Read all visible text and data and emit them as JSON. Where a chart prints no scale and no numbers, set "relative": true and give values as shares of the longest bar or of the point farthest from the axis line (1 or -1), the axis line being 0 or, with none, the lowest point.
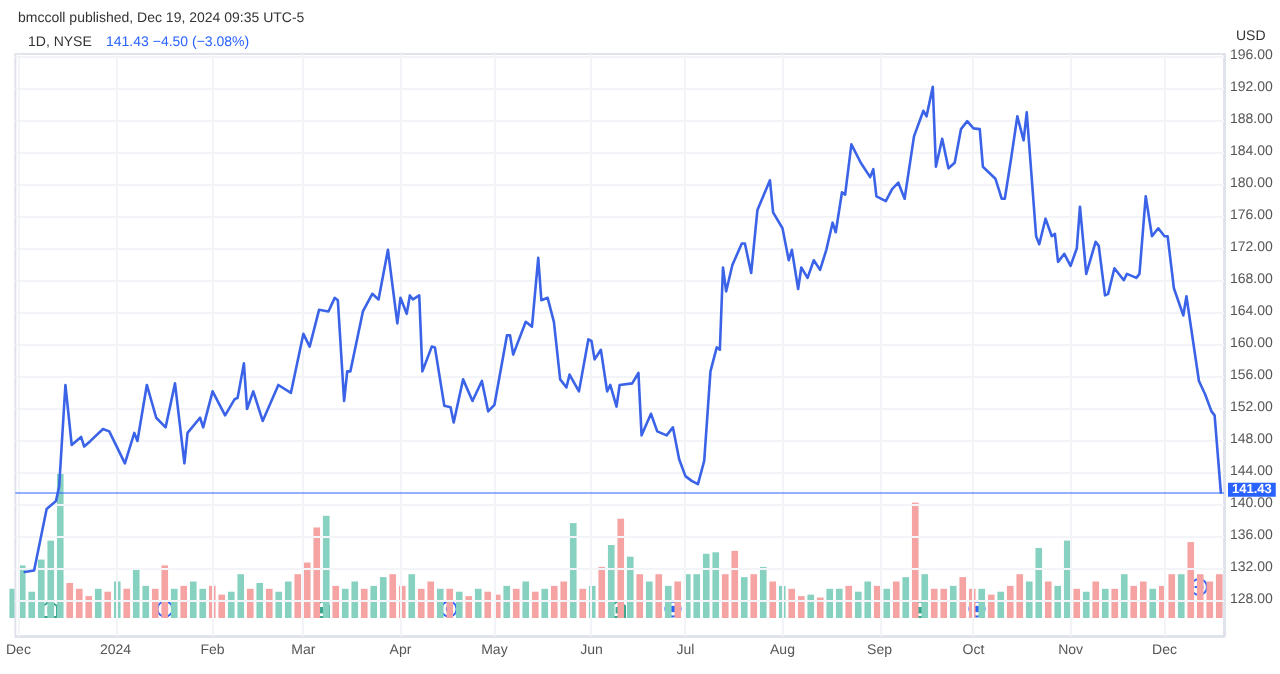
{
  "chart_data": [
    {
      "type": "line",
      "title": "1D, NYSE",
      "subtitle": "141.43 −4.50 (−3.08%)",
      "ylabel": "USD",
      "annotations": [
        "bmccoll published, Dec 19, 2024 09:35 UTC-5"
      ],
      "x": [
        "2023-12-03",
        "2023-12-06",
        "2023-12-10",
        "2023-12-13",
        "2023-12-14",
        "2023-12-16",
        "2023-12-18",
        "2023-12-21",
        "2023-12-22",
        "2023-12-24",
        "2023-12-28",
        "2023-12-30",
        "2024-01-04",
        "2024-01-07",
        "2024-01-08",
        "2024-01-11",
        "2024-01-14",
        "2024-01-17",
        "2024-01-20",
        "2024-01-23",
        "2024-01-24",
        "2024-01-28",
        "2024-01-29",
        "2024-02-01",
        "2024-02-05",
        "2024-02-08",
        "2024-02-09",
        "2024-02-11",
        "2024-02-12",
        "2024-02-14",
        "2024-02-17",
        "2024-02-22",
        "2024-02-26",
        "2024-03-01",
        "2024-03-03",
        "2024-03-06",
        "2024-03-09",
        "2024-03-11",
        "2024-03-12",
        "2024-03-14",
        "2024-03-15",
        "2024-03-16",
        "2024-03-20",
        "2024-03-23",
        "2024-03-25",
        "2024-03-28",
        "2024-03-31",
        "2024-04-01",
        "2024-04-03",
        "2024-04-04",
        "2024-04-05",
        "2024-04-07",
        "2024-04-08",
        "2024-04-11",
        "2024-04-12",
        "2024-04-15",
        "2024-04-17",
        "2024-04-18",
        "2024-04-21",
        "2024-04-24",
        "2024-04-27",
        "2024-04-29",
        "2024-05-01",
        "2024-05-05",
        "2024-05-06",
        "2024-05-07",
        "2024-05-11",
        "2024-05-13",
        "2024-05-15",
        "2024-05-16",
        "2024-05-18",
        "2024-05-20",
        "2024-05-22",
        "2024-05-24",
        "2024-05-25",
        "2024-05-28",
        "2024-05-31",
        "2024-06-01",
        "2024-06-02",
        "2024-06-04",
        "2024-06-06",
        "2024-06-07",
        "2024-06-09",
        "2024-06-10",
        "2024-06-14",
        "2024-06-16",
        "2024-06-17",
        "2024-06-20",
        "2024-06-22",
        "2024-06-25",
        "2024-06-27",
        "2024-06-29",
        "2024-07-01",
        "2024-07-03",
        "2024-07-05",
        "2024-07-07",
        "2024-07-09",
        "2024-07-11",
        "2024-07-12",
        "2024-07-13",
        "2024-07-14",
        "2024-07-16",
        "2024-07-19",
        "2024-07-20",
        "2024-07-22",
        "2024-07-24",
        "2024-07-28",
        "2024-07-29",
        "2024-08-01",
        "2024-08-03",
        "2024-08-04",
        "2024-08-06",
        "2024-08-07",
        "2024-08-09",
        "2024-08-11",
        "2024-08-13",
        "2024-08-15",
        "2024-08-17",
        "2024-08-18",
        "2024-08-20",
        "2024-08-21",
        "2024-08-23",
        "2024-08-26",
        "2024-08-29",
        "2024-08-30",
        "2024-08-31",
        "2024-09-03",
        "2024-09-05",
        "2024-09-07",
        "2024-09-09",
        "2024-09-12",
        "2024-09-15",
        "2024-09-16",
        "2024-09-18",
        "2024-09-19",
        "2024-09-21",
        "2024-09-23",
        "2024-09-25",
        "2024-09-27",
        "2024-09-29",
        "2024-10-01",
        "2024-10-03",
        "2024-10-04",
        "2024-10-08",
        "2024-10-10",
        "2024-10-11",
        "2024-10-13",
        "2024-10-15",
        "2024-10-17",
        "2024-10-18",
        "2024-10-21",
        "2024-10-22",
        "2024-10-24",
        "2024-10-26",
        "2024-10-27",
        "2024-10-28",
        "2024-10-30",
        "2024-11-01",
        "2024-11-03",
        "2024-11-04",
        "2024-11-06",
        "2024-11-09",
        "2024-11-10",
        "2024-11-12",
        "2024-11-13",
        "2024-11-15",
        "2024-11-18",
        "2024-11-19",
        "2024-11-22",
        "2024-11-23",
        "2024-11-25",
        "2024-11-27",
        "2024-11-29",
        "2024-12-01",
        "2024-12-02",
        "2024-12-04",
        "2024-12-07",
        "2024-12-08",
        "2024-12-12",
        "2024-12-14",
        "2024-12-16",
        "2024-12-17",
        "2024-12-19"
      ],
      "values": [
        131.5,
        131.7,
        139.4,
        140.4,
        142.2,
        154.9,
        147.4,
        148.4,
        147.2,
        147.9,
        149.4,
        149.1,
        145.1,
        148.9,
        147.9,
        154.9,
        150.8,
        149.6,
        155.1,
        145.1,
        148.9,
        150.8,
        149.6,
        154.1,
        151.1,
        153.1,
        153.3,
        157.6,
        151.9,
        154.1,
        150.4,
        154.9,
        153.9,
        161.3,
        159.7,
        164.3,
        164.1,
        165.8,
        165.5,
        152.9,
        156.6,
        156.6,
        164.1,
        166.3,
        165.6,
        171.8,
        162.6,
        165.8,
        163.8,
        166.1,
        165.6,
        166.1,
        156.6,
        159.7,
        159.6,
        152.3,
        152.1,
        150.2,
        155.6,
        152.9,
        155.4,
        151.6,
        152.4,
        161.1,
        161.1,
        158.7,
        162.8,
        162.2,
        170.8,
        165.5,
        165.8,
        162.8,
        155.6,
        154.6,
        156.2,
        154.1,
        160.6,
        160.4,
        158.1,
        159.3,
        154.1,
        154.9,
        152.2,
        154.9,
        155.1,
        156.4,
        148.6,
        151.3,
        149.1,
        148.6,
        149.6,
        145.6,
        143.5,
        142.9,
        142.5,
        145.4,
        156.6,
        159.6,
        159.3,
        169.6,
        166.6,
        169.9,
        172.6,
        172.6,
        168.9,
        176.8,
        180.5,
        176.5,
        174.5,
        170.5,
        171.8,
        166.9,
        169.6,
        168.3,
        170.5,
        169.3,
        171.8,
        175.2,
        174.0,
        179.0,
        178.7,
        185.0,
        182.7,
        180.9,
        181.9,
        178.5,
        177.9,
        179.4,
        180.2,
        178.2,
        186.0,
        189.2,
        188.5,
        192.2,
        182.2,
        185.7,
        182.0,
        182.7,
        186.9,
        187.9,
        187.0,
        186.9,
        182.2,
        180.7,
        178.2,
        178.2,
        183.2,
        188.5,
        185.5,
        189.0,
        173.5,
        172.5,
        175.7,
        173.5,
        173.8,
        170.3,
        171.3,
        169.8,
        172.0,
        177.2,
        168.8,
        172.8,
        172.3,
        166.1,
        166.3,
        169.5,
        168.0,
        168.8,
        168.3,
        168.8,
        178.5,
        173.5,
        174.5,
        173.5,
        173.5,
        167.0,
        163.6,
        166.0,
        155.4,
        153.7,
        151.6,
        151.1,
        141.43
      ],
      "color": "#3a63e8",
      "xlim": [
        "2023-11-30",
        "2024-12-20"
      ],
      "xticks": [
        {
          "value": "2023-12-01",
          "label": "Dec"
        },
        {
          "value": "2024-01-01",
          "label": "2024"
        },
        {
          "value": "2024-02-01",
          "label": "Feb"
        },
        {
          "value": "2024-03-01",
          "label": "Mar"
        },
        {
          "value": "2024-04-01",
          "label": "Apr"
        },
        {
          "value": "2024-05-01",
          "label": "May"
        },
        {
          "value": "2024-06-01",
          "label": "Jun"
        },
        {
          "value": "2024-07-01",
          "label": "Jul"
        },
        {
          "value": "2024-08-01",
          "label": "Aug"
        },
        {
          "value": "2024-09-01",
          "label": "Sep"
        },
        {
          "value": "2024-10-01",
          "label": "Oct"
        },
        {
          "value": "2024-11-01",
          "label": "Nov"
        },
        {
          "value": "2024-12-01",
          "label": "Dec"
        }
      ],
      "ylim": [
        123.5,
        196.3
      ],
      "yticks": [
        {
          "value": 128,
          "label": "128.00"
        },
        {
          "value": 132,
          "label": "132.00"
        },
        {
          "value": 136,
          "label": "136.00"
        },
        {
          "value": 140,
          "label": "140.00"
        },
        {
          "value": 144,
          "label": "144.00"
        },
        {
          "value": 148,
          "label": "148.00"
        },
        {
          "value": 152,
          "label": "152.00"
        },
        {
          "value": 156,
          "label": "156.00"
        },
        {
          "value": 160,
          "label": "160.00"
        },
        {
          "value": 164,
          "label": "164.00"
        },
        {
          "value": 168,
          "label": "168.00"
        },
        {
          "value": 172,
          "label": "172.00"
        },
        {
          "value": 176,
          "label": "176.00"
        },
        {
          "value": 180,
          "label": "180.00"
        },
        {
          "value": 184,
          "label": "184.00"
        },
        {
          "value": 188,
          "label": "188.00"
        },
        {
          "value": 192,
          "label": "192.00"
        },
        {
          "value": 196,
          "label": "196.00"
        }
      ],
      "ref_lines": [
        {
          "axis": "y",
          "value": 141.43,
          "label": "141.43",
          "color": "#2962ff"
        }
      ],
      "grid": true
    },
    {
      "type": "bar",
      "relative": true,
      "categories": [
        null,
        null,
        null,
        null,
        null,
        null,
        null,
        null,
        null,
        null,
        null,
        null,
        null,
        null,
        null,
        null,
        null,
        null,
        null,
        null,
        null,
        null,
        null,
        null,
        null,
        null,
        null,
        null,
        null,
        null,
        null,
        null,
        null,
        null,
        null,
        null,
        null,
        null,
        null,
        null,
        null,
        null,
        null,
        null,
        null,
        null,
        null,
        null,
        null,
        null,
        null,
        null,
        null,
        null,
        null,
        null,
        null,
        null,
        null,
        null,
        null,
        null,
        null,
        null,
        null,
        null,
        null,
        null,
        null,
        null,
        null,
        null,
        null,
        null,
        null,
        null,
        null,
        null,
        null,
        null,
        null,
        null,
        null,
        null,
        null,
        null,
        null,
        null,
        null,
        null,
        null,
        null,
        null,
        null,
        null,
        null,
        null,
        null,
        null,
        null,
        null,
        null,
        null,
        null,
        null,
        null,
        null,
        null,
        null,
        null,
        null,
        null,
        null,
        null,
        null,
        null,
        null,
        null,
        null,
        null,
        null,
        null,
        null,
        null,
        null,
        null,
        null,
        null
      ],
      "values": [
        0.2,
        0.36,
        0.18,
        0.4,
        0.53,
        1,
        0.24,
        0.2,
        0.15,
        0.2,
        0.18,
        0.25,
        0.2,
        0.34,
        0.22,
        0.2,
        0.36,
        0.2,
        0.22,
        0.25,
        0.2,
        0.22,
        0.16,
        0.18,
        0.3,
        0.2,
        0.24,
        0.2,
        0.18,
        0.25,
        0.3,
        0.38,
        0.62,
        0.7,
        0.22,
        0.2,
        0.25,
        0.2,
        0.22,
        0.28,
        0.3,
        0.22,
        0.3,
        0.2,
        0.25,
        0.2,
        0.2,
        0.18,
        0.15,
        0.2,
        0.18,
        0.16,
        0.22,
        0.2,
        0.25,
        0.18,
        0.2,
        0.22,
        0.25,
        0.65,
        0.2,
        0.22,
        0.35,
        0.5,
        0.68,
        0.42,
        0.3,
        0.25,
        0.3,
        0.22,
        0.25,
        0.3,
        0.3,
        0.44,
        0.45,
        0.3,
        0.46,
        0.28,
        0.3,
        0.35,
        0.25,
        0.22,
        0.2,
        0.15,
        0.16,
        0.14,
        0.2,
        0.2,
        0.22,
        0.18,
        0.25,
        0.22,
        0.2,
        0.25,
        0.28,
        0.79,
        0.3,
        0.2,
        0.2,
        0.22,
        0.28,
        0.2,
        0.2,
        0.16,
        0.18,
        0.22,
        0.3,
        0.25,
        0.48,
        0.25,
        0.22,
        0.53,
        0.2,
        0.18,
        0.25,
        0.2,
        0.2,
        0.3,
        0.22,
        0.25,
        0.2,
        0.22,
        0.3,
        0.3,
        0.52,
        0.3,
        0.25,
        0.3
      ],
      "colors": [
        "#86d1c0",
        "#86d1c0",
        "#86d1c0",
        "#86d1c0",
        "#86d1c0",
        "#86d1c0",
        "#f5a3a3",
        "#f5a3a3",
        "#f5a3a3",
        "#86d1c0",
        "#f5a3a3",
        "#86d1c0",
        "#f5a3a3",
        "#86d1c0",
        "#86d1c0",
        "#f5a3a3",
        "#f5a3a3",
        "#86d1c0",
        "#f5a3a3",
        "#86d1c0",
        "#86d1c0",
        "#f5a3a3",
        "#f5a3a3",
        "#86d1c0",
        "#86d1c0",
        "#f5a3a3",
        "#86d1c0",
        "#f5a3a3",
        "#86d1c0",
        "#86d1c0",
        "#f5a3a3",
        "#f5a3a3",
        "#f5a3a3",
        "#86d1c0",
        "#f5a3a3",
        "#86d1c0",
        "#86d1c0",
        "#f5a3a3",
        "#86d1c0",
        "#86d1c0",
        "#f5a3a3",
        "#f5a3a3",
        "#86d1c0",
        "#f5a3a3",
        "#f5a3a3",
        "#86d1c0",
        "#f5a3a3",
        "#86d1c0",
        "#f5a3a3",
        "#86d1c0",
        "#f5a3a3",
        "#f5a3a3",
        "#86d1c0",
        "#f5a3a3",
        "#86d1c0",
        "#f5a3a3",
        "#86d1c0",
        "#f5a3a3",
        "#f5a3a3",
        "#86d1c0",
        "#f5a3a3",
        "#86d1c0",
        "#f5a3a3",
        "#86d1c0",
        "#f5a3a3",
        "#86d1c0",
        "#f5a3a3",
        "#86d1c0",
        "#f5a3a3",
        "#86d1c0",
        "#f5a3a3",
        "#86d1c0",
        "#86d1c0",
        "#86d1c0",
        "#86d1c0",
        "#f5a3a3",
        "#f5a3a3",
        "#86d1c0",
        "#f5a3a3",
        "#86d1c0",
        "#f5a3a3",
        "#86d1c0",
        "#f5a3a3",
        "#f5a3a3",
        "#86d1c0",
        "#f5a3a3",
        "#86d1c0",
        "#86d1c0",
        "#f5a3a3",
        "#86d1c0",
        "#86d1c0",
        "#f5a3a3",
        "#86d1c0",
        "#f5a3a3",
        "#86d1c0",
        "#f5a3a3",
        "#86d1c0",
        "#f5a3a3",
        "#f5a3a3",
        "#86d1c0",
        "#f5a3a3",
        "#f5a3a3",
        "#86d1c0",
        "#f5a3a3",
        "#86d1c0",
        "#f5a3a3",
        "#f5a3a3",
        "#86d1c0",
        "#86d1c0",
        "#f5a3a3",
        "#86d1c0",
        "#86d1c0",
        "#f5a3a3",
        "#86d1c0",
        "#f5a3a3",
        "#86d1c0",
        "#f5a3a3",
        "#86d1c0",
        "#f5a3a3",
        "#f5a3a3",
        "#86d1c0",
        "#f5a3a3",
        "#f5a3a3",
        "#86d1c0",
        "#f5a3a3",
        "#f5a3a3",
        "#f5a3a3",
        "#f5a3a3"
      ]
    }
  ]
}
